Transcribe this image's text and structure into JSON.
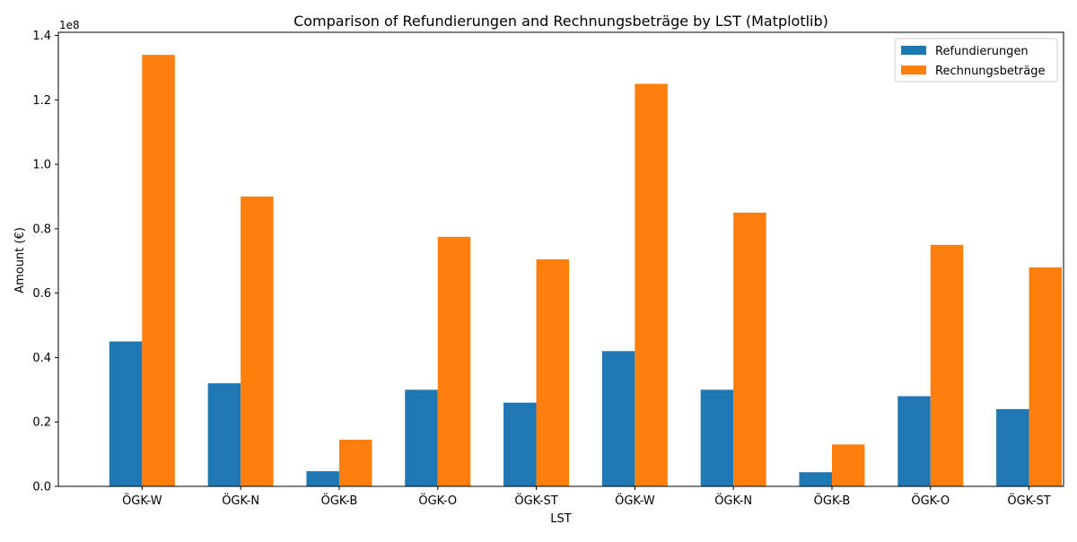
{
  "chart_data": {
    "type": "bar",
    "title": "Comparison of Refundierungen and Rechnungsbeträge by LST (Matplotlib)",
    "xlabel": "LST",
    "ylabel": "Amount (€)",
    "y_offset_text": "1e8",
    "categories": [
      "ÖGK-W",
      "ÖGK-N",
      "ÖGK-B",
      "ÖGK-O",
      "ÖGK-ST",
      "ÖGK-W",
      "ÖGK-N",
      "ÖGK-B",
      "ÖGK-O",
      "ÖGK-ST"
    ],
    "series": [
      {
        "name": "Refundierungen",
        "color": "#1f77b4",
        "values": [
          45000000,
          32000000,
          4700000,
          30000000,
          26000000,
          42000000,
          30000000,
          4400000,
          28000000,
          24000000
        ]
      },
      {
        "name": "Rechnungsbeträge",
        "color": "#ff7f0e",
        "values": [
          134000000,
          90000000,
          14500000,
          77500000,
          70500000,
          125000000,
          85000000,
          13000000,
          75000000,
          68000000
        ]
      }
    ],
    "ylim": [
      0,
      141000000
    ],
    "yticks": [
      {
        "value": 0,
        "label": "0.0"
      },
      {
        "value": 20000000,
        "label": "0.2"
      },
      {
        "value": 40000000,
        "label": "0.4"
      },
      {
        "value": 60000000,
        "label": "0.6"
      },
      {
        "value": 80000000,
        "label": "0.8"
      },
      {
        "value": 100000000,
        "label": "1.0"
      },
      {
        "value": 120000000,
        "label": "1.2"
      },
      {
        "value": 140000000,
        "label": "1.4"
      }
    ],
    "legend_position": "top-right",
    "grid": false
  }
}
